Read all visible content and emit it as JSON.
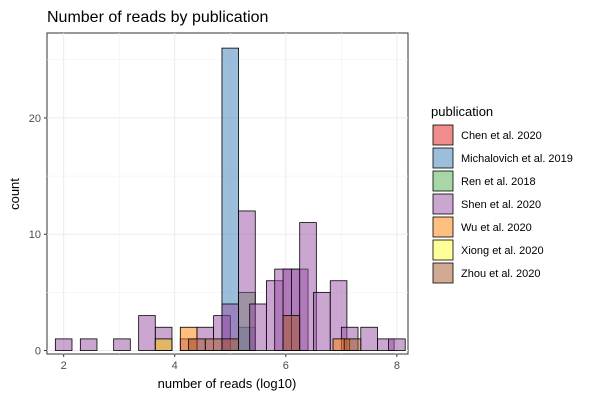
{
  "chart_data": {
    "type": "bar",
    "subtype": "stacked-overlaid histogram",
    "title": "Number of reads by publication",
    "xlabel": "number of reads (log10)",
    "ylabel": "count",
    "xlim": [
      1.7,
      8.2
    ],
    "ylim": [
      -0.3,
      27.3
    ],
    "x_ticks": [
      2,
      4,
      6,
      8
    ],
    "y_ticks": [
      0,
      10,
      20
    ],
    "grid": true,
    "legend_title": "publication",
    "legend_position": "right",
    "bin_width": 0.3,
    "series": [
      {
        "name": "Chen et al. 2020",
        "color": "#e41a1c",
        "bins": [
          {
            "x": 3.8,
            "count": 1
          }
        ]
      },
      {
        "name": "Michalovich et al. 2019",
        "color": "#377eb8",
        "bins": [
          {
            "x": 5.0,
            "count": 26
          },
          {
            "x": 5.3,
            "count": 2
          }
        ]
      },
      {
        "name": "Ren et al. 2018",
        "color": "#4daf4a",
        "bins": [
          {
            "x": 5.3,
            "count": 5
          }
        ]
      },
      {
        "name": "Shen et al. 2020",
        "color": "#984ea3",
        "bins": [
          {
            "x": 2.0,
            "count": 1
          },
          {
            "x": 2.45,
            "count": 1
          },
          {
            "x": 3.05,
            "count": 1
          },
          {
            "x": 3.5,
            "count": 3
          },
          {
            "x": 3.8,
            "count": 2
          },
          {
            "x": 4.25,
            "count": 1
          },
          {
            "x": 4.55,
            "count": 2
          },
          {
            "x": 4.85,
            "count": 3
          },
          {
            "x": 5.0,
            "count": 4
          },
          {
            "x": 5.3,
            "count": 12
          },
          {
            "x": 5.5,
            "count": 4
          },
          {
            "x": 5.8,
            "count": 6
          },
          {
            "x": 5.95,
            "count": 7
          },
          {
            "x": 6.1,
            "count": 7
          },
          {
            "x": 6.25,
            "count": 7
          },
          {
            "x": 6.4,
            "count": 11
          },
          {
            "x": 6.65,
            "count": 5
          },
          {
            "x": 6.95,
            "count": 6
          },
          {
            "x": 7.15,
            "count": 2
          },
          {
            "x": 7.5,
            "count": 2
          },
          {
            "x": 7.8,
            "count": 1
          },
          {
            "x": 8.0,
            "count": 1
          }
        ]
      },
      {
        "name": "Wu et al. 2020",
        "color": "#ff7f00",
        "bins": [
          {
            "x": 4.25,
            "count": 2
          },
          {
            "x": 7.0,
            "count": 1
          }
        ]
      },
      {
        "name": "Xiong et al. 2020",
        "color": "#ffff33",
        "bins": [
          {
            "x": 3.8,
            "count": 1
          }
        ]
      },
      {
        "name": "Zhou et al. 2020",
        "color": "#a65628",
        "bins": [
          {
            "x": 4.4,
            "count": 1
          },
          {
            "x": 4.7,
            "count": 1
          },
          {
            "x": 5.0,
            "count": 1
          },
          {
            "x": 6.1,
            "count": 3
          },
          {
            "x": 7.2,
            "count": 1
          }
        ]
      }
    ]
  }
}
